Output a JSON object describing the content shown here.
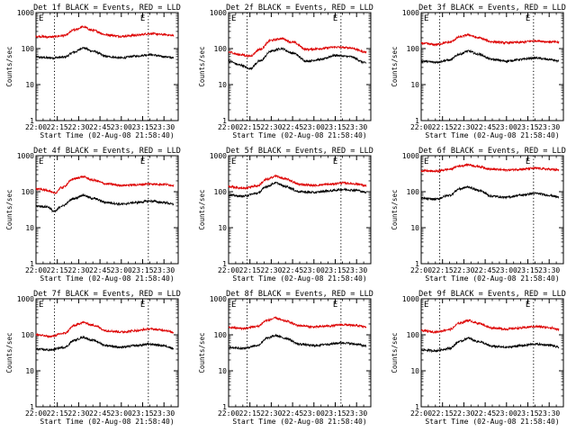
{
  "chart_data": [
    {
      "type": "line",
      "title": "Det 1f BLACK = Events, RED = LLD",
      "xlabel": "Start Time (02-Aug-08 21:58:40)",
      "ylabel": "Counts/sec",
      "x_ticks": [
        "22:00",
        "22:15",
        "22:30",
        "22:45",
        "23:00",
        "23:15",
        "23:30"
      ],
      "y_ticks": [
        "1",
        "10",
        "100",
        "1000"
      ],
      "yscale": "log",
      "ylim": [
        1,
        1000
      ],
      "markers": [
        {
          "label": "E",
          "at": "22:13"
        },
        {
          "label": "E",
          "at": "23:19"
        }
      ],
      "series": [
        {
          "name": "Events",
          "color": "#000000",
          "x": [
            "22:00",
            "22:10",
            "22:20",
            "22:27",
            "22:33",
            "22:40",
            "22:50",
            "23:00",
            "23:10",
            "23:20",
            "23:30",
            "23:37"
          ],
          "values": [
            58,
            55,
            58,
            80,
            105,
            85,
            60,
            55,
            62,
            68,
            60,
            55
          ]
        },
        {
          "name": "LLD",
          "color": "#dd0000",
          "x": [
            "22:00",
            "22:10",
            "22:20",
            "22:27",
            "22:33",
            "22:40",
            "22:50",
            "23:00",
            "23:10",
            "23:20",
            "23:30",
            "23:37"
          ],
          "values": [
            220,
            210,
            230,
            330,
            400,
            320,
            240,
            220,
            235,
            260,
            245,
            230
          ]
        }
      ]
    },
    {
      "type": "line",
      "title": "Det 2f BLACK = Events, RED = LLD",
      "xlabel": "Start Time (02-Aug-08 21:58:40)",
      "ylabel": "Counts/sec",
      "x_ticks": [
        "22:00",
        "22:15",
        "22:30",
        "22:45",
        "23:00",
        "23:15",
        "23:30"
      ],
      "y_ticks": [
        "1",
        "10",
        "100",
        "1000"
      ],
      "yscale": "log",
      "ylim": [
        1,
        1000
      ],
      "markers": [
        {
          "label": "E",
          "at": "22:13"
        },
        {
          "label": "E",
          "at": "23:19"
        }
      ],
      "series": [
        {
          "name": "Events",
          "color": "#000000",
          "x": [
            "22:00",
            "22:08",
            "22:15",
            "22:22",
            "22:30",
            "22:37",
            "22:45",
            "22:55",
            "23:05",
            "23:15",
            "23:25",
            "23:37"
          ],
          "values": [
            45,
            35,
            28,
            45,
            85,
            100,
            75,
            45,
            50,
            65,
            60,
            40
          ]
        },
        {
          "name": "LLD",
          "color": "#dd0000",
          "x": [
            "22:00",
            "22:08",
            "22:15",
            "22:22",
            "22:30",
            "22:37",
            "22:45",
            "22:55",
            "23:05",
            "23:15",
            "23:25",
            "23:37"
          ],
          "values": [
            80,
            68,
            62,
            95,
            170,
            190,
            150,
            95,
            100,
            110,
            105,
            80
          ]
        }
      ]
    },
    {
      "type": "line",
      "title": "Det 3f BLACK = Events, RED = LLD",
      "xlabel": "Start Time (02-Aug-08 21:58:40)",
      "ylabel": "Counts/sec",
      "x_ticks": [
        "22:00",
        "22:15",
        "22:30",
        "22:45",
        "23:00",
        "23:15",
        "23:30"
      ],
      "y_ticks": [
        "1",
        "10",
        "100",
        "1000"
      ],
      "yscale": "log",
      "ylim": [
        1,
        1000
      ],
      "markers": [
        {
          "label": "E",
          "at": "22:13"
        },
        {
          "label": "E",
          "at": "23:19"
        }
      ],
      "series": [
        {
          "name": "Events",
          "color": "#000000",
          "x": [
            "22:00",
            "22:10",
            "22:20",
            "22:27",
            "22:33",
            "22:40",
            "22:50",
            "23:00",
            "23:10",
            "23:20",
            "23:30",
            "23:37"
          ],
          "values": [
            45,
            42,
            48,
            70,
            85,
            70,
            50,
            45,
            50,
            55,
            50,
            45
          ]
        },
        {
          "name": "LLD",
          "color": "#dd0000",
          "x": [
            "22:00",
            "22:10",
            "22:20",
            "22:27",
            "22:33",
            "22:40",
            "22:50",
            "23:00",
            "23:10",
            "23:20",
            "23:30",
            "23:37"
          ],
          "values": [
            140,
            130,
            150,
            210,
            240,
            200,
            155,
            145,
            150,
            165,
            155,
            150
          ]
        }
      ]
    },
    {
      "type": "line",
      "title": "Det 4f BLACK = Events, RED = LLD",
      "xlabel": "Start Time (02-Aug-08 21:58:40)",
      "ylabel": "Counts/sec",
      "x_ticks": [
        "22:00",
        "22:15",
        "22:30",
        "22:45",
        "23:00",
        "23:15",
        "23:30"
      ],
      "y_ticks": [
        "1",
        "10",
        "100",
        "1000"
      ],
      "yscale": "log",
      "ylim": [
        1,
        1000
      ],
      "markers": [
        {
          "label": "E",
          "at": "22:13"
        },
        {
          "label": "E",
          "at": "23:19"
        }
      ],
      "series": [
        {
          "name": "Events",
          "color": "#000000",
          "x": [
            "22:00",
            "22:08",
            "22:13",
            "22:18",
            "22:27",
            "22:33",
            "22:40",
            "22:50",
            "23:00",
            "23:10",
            "23:20",
            "23:30",
            "23:37"
          ],
          "values": [
            40,
            38,
            28,
            40,
            65,
            80,
            65,
            50,
            45,
            50,
            55,
            50,
            45
          ]
        },
        {
          "name": "LLD",
          "color": "#dd0000",
          "x": [
            "22:00",
            "22:08",
            "22:13",
            "22:18",
            "22:27",
            "22:33",
            "22:40",
            "22:50",
            "23:00",
            "23:10",
            "23:20",
            "23:30",
            "23:37"
          ],
          "values": [
            120,
            110,
            90,
            130,
            230,
            260,
            210,
            165,
            150,
            155,
            165,
            160,
            150
          ]
        }
      ]
    },
    {
      "type": "line",
      "title": "Det 5f BLACK = Events, RED = LLD",
      "xlabel": "Start Time (02-Aug-08 21:58:40)",
      "ylabel": "Counts/sec",
      "x_ticks": [
        "22:00",
        "22:15",
        "22:30",
        "22:45",
        "23:00",
        "23:15",
        "23:30"
      ],
      "y_ticks": [
        "1",
        "10",
        "100",
        "1000"
      ],
      "yscale": "log",
      "ylim": [
        1,
        1000
      ],
      "markers": [
        {
          "label": "E",
          "at": "22:13"
        },
        {
          "label": "E",
          "at": "23:19"
        }
      ],
      "series": [
        {
          "name": "Events",
          "color": "#000000",
          "x": [
            "22:00",
            "22:10",
            "22:20",
            "22:27",
            "22:33",
            "22:40",
            "22:50",
            "23:00",
            "23:10",
            "23:20",
            "23:30",
            "23:37"
          ],
          "values": [
            80,
            75,
            90,
            140,
            175,
            140,
            100,
            95,
            105,
            115,
            110,
            95
          ]
        },
        {
          "name": "LLD",
          "color": "#dd0000",
          "x": [
            "22:00",
            "22:10",
            "22:20",
            "22:27",
            "22:33",
            "22:40",
            "22:50",
            "23:00",
            "23:10",
            "23:20",
            "23:30",
            "23:37"
          ],
          "values": [
            140,
            125,
            145,
            220,
            270,
            225,
            160,
            150,
            160,
            175,
            165,
            145
          ]
        }
      ]
    },
    {
      "type": "line",
      "title": "Det 6f BLACK = Events, RED = LLD",
      "xlabel": "Start Time (02-Aug-08 21:58:40)",
      "ylabel": "Counts/sec",
      "x_ticks": [
        "22:00",
        "22:15",
        "22:30",
        "22:45",
        "23:00",
        "23:15",
        "23:30"
      ],
      "y_ticks": [
        "1",
        "10",
        "100",
        "1000"
      ],
      "yscale": "log",
      "ylim": [
        1,
        1000
      ],
      "markers": [
        {
          "label": "E",
          "at": "22:13"
        },
        {
          "label": "E",
          "at": "23:19"
        }
      ],
      "series": [
        {
          "name": "Events",
          "color": "#000000",
          "x": [
            "22:00",
            "22:10",
            "22:20",
            "22:27",
            "22:33",
            "22:40",
            "22:50",
            "23:00",
            "23:10",
            "23:20",
            "23:30",
            "23:37"
          ],
          "values": [
            65,
            62,
            80,
            120,
            135,
            110,
            75,
            70,
            80,
            90,
            80,
            70
          ]
        },
        {
          "name": "LLD",
          "color": "#dd0000",
          "x": [
            "22:00",
            "22:10",
            "22:20",
            "22:27",
            "22:33",
            "22:40",
            "22:50",
            "23:00",
            "23:10",
            "23:20",
            "23:30",
            "23:37"
          ],
          "values": [
            380,
            370,
            420,
            520,
            560,
            500,
            420,
            400,
            420,
            450,
            420,
            400
          ]
        }
      ]
    },
    {
      "type": "line",
      "title": "Det 7f BLACK = Events, RED = LLD",
      "xlabel": "Start Time (02-Aug-08 21:58:40)",
      "ylabel": "Counts/sec",
      "x_ticks": [
        "22:00",
        "22:15",
        "22:30",
        "22:45",
        "23:00",
        "23:15",
        "23:30"
      ],
      "y_ticks": [
        "1",
        "10",
        "100",
        "1000"
      ],
      "yscale": "log",
      "ylim": [
        1,
        1000
      ],
      "markers": [
        {
          "label": "E",
          "at": "22:13"
        },
        {
          "label": "E",
          "at": "23:19"
        }
      ],
      "series": [
        {
          "name": "Events",
          "color": "#000000",
          "x": [
            "22:00",
            "22:10",
            "22:20",
            "22:27",
            "22:33",
            "22:40",
            "22:50",
            "23:00",
            "23:10",
            "23:20",
            "23:30",
            "23:37"
          ],
          "values": [
            40,
            38,
            45,
            70,
            85,
            70,
            50,
            45,
            50,
            55,
            50,
            42
          ]
        },
        {
          "name": "LLD",
          "color": "#dd0000",
          "x": [
            "22:00",
            "22:10",
            "22:20",
            "22:27",
            "22:33",
            "22:40",
            "22:50",
            "23:00",
            "23:10",
            "23:20",
            "23:30",
            "23:37"
          ],
          "values": [
            100,
            90,
            110,
            180,
            220,
            185,
            130,
            120,
            130,
            145,
            135,
            115
          ]
        }
      ]
    },
    {
      "type": "line",
      "title": "Det 8f BLACK = Events, RED = LLD",
      "xlabel": "Start Time (02-Aug-08 21:58:40)",
      "ylabel": "Counts/sec",
      "x_ticks": [
        "22:00",
        "22:15",
        "22:30",
        "22:45",
        "23:00",
        "23:15",
        "23:30"
      ],
      "y_ticks": [
        "1",
        "10",
        "100",
        "1000"
      ],
      "yscale": "log",
      "ylim": [
        1,
        1000
      ],
      "markers": [
        {
          "label": "E",
          "at": "22:13"
        },
        {
          "label": "E",
          "at": "23:19"
        }
      ],
      "series": [
        {
          "name": "Events",
          "color": "#000000",
          "x": [
            "22:00",
            "22:10",
            "22:20",
            "22:27",
            "22:33",
            "22:40",
            "22:50",
            "23:00",
            "23:10",
            "23:20",
            "23:30",
            "23:37"
          ],
          "values": [
            45,
            42,
            50,
            80,
            95,
            80,
            55,
            50,
            55,
            60,
            55,
            48
          ]
        },
        {
          "name": "LLD",
          "color": "#dd0000",
          "x": [
            "22:00",
            "22:10",
            "22:20",
            "22:27",
            "22:33",
            "22:40",
            "22:50",
            "23:00",
            "23:10",
            "23:20",
            "23:30",
            "23:37"
          ],
          "values": [
            160,
            150,
            170,
            250,
            290,
            240,
            180,
            165,
            175,
            190,
            180,
            165
          ]
        }
      ]
    },
    {
      "type": "line",
      "title": "Det 9f BLACK = Events, RED = LLD",
      "xlabel": "Start Time (02-Aug-08 21:58:40)",
      "ylabel": "Counts/sec",
      "x_ticks": [
        "22:00",
        "22:15",
        "22:30",
        "22:45",
        "23:00",
        "23:15",
        "23:30"
      ],
      "y_ticks": [
        "1",
        "10",
        "100",
        "1000"
      ],
      "yscale": "log",
      "ylim": [
        1,
        1000
      ],
      "markers": [
        {
          "label": "E",
          "at": "22:13"
        },
        {
          "label": "E",
          "at": "23:19"
        }
      ],
      "series": [
        {
          "name": "Events",
          "color": "#000000",
          "x": [
            "22:00",
            "22:10",
            "22:20",
            "22:27",
            "22:33",
            "22:40",
            "22:50",
            "23:00",
            "23:10",
            "23:20",
            "23:30",
            "23:37"
          ],
          "values": [
            38,
            36,
            42,
            65,
            80,
            65,
            48,
            45,
            50,
            55,
            52,
            45
          ]
        },
        {
          "name": "LLD",
          "color": "#dd0000",
          "x": [
            "22:00",
            "22:10",
            "22:20",
            "22:27",
            "22:33",
            "22:40",
            "22:50",
            "23:00",
            "23:10",
            "23:20",
            "23:30",
            "23:37"
          ],
          "values": [
            130,
            120,
            140,
            210,
            250,
            210,
            155,
            145,
            155,
            170,
            160,
            140
          ]
        }
      ]
    }
  ]
}
